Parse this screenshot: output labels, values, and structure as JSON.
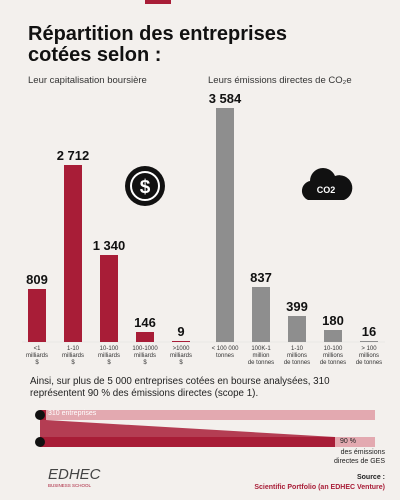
{
  "title": "Répartition des entreprises cotées selon :",
  "chart_data": [
    {
      "type": "bar",
      "subtitle": "Leur capitalisation boursière",
      "categories": [
        "<1\nmilliards\n$",
        "1-10\nmilliards\n$",
        "10-100\nmilliards\n$",
        "100-1000\nmilliards\n$",
        ">1000\nmilliards\n$"
      ],
      "values": [
        809,
        2712,
        1340,
        146,
        9
      ],
      "value_labels": [
        "809",
        "2 712",
        "1 340",
        "146",
        "9"
      ],
      "color": "#a81d37"
    },
    {
      "type": "bar",
      "subtitle": "Leurs émissions directes de CO₂e",
      "categories": [
        "< 100 000\ntonnes",
        "100K-1\nmillion\nde tonnes",
        "1-10\nmillions\nde tonnes",
        "10-100\nmillions\nde tonnes",
        "> 100\nmillions\nde tonnes"
      ],
      "values": [
        3584,
        837,
        399,
        180,
        16
      ],
      "value_labels": [
        "3 584",
        "837",
        "399",
        "180",
        "16"
      ],
      "color": "#8e8e8e"
    }
  ],
  "summary": "Ainsi, sur plus de 5 000 entreprises cotées en bourse analysées, 310 représentent 90 % des émissions directes (scope 1).",
  "companies_label": "310 entreprises",
  "share_label": "90 %",
  "share_caption": "des émissions\ndirectes de GES",
  "icon_label": "CO2",
  "logo": {
    "name": "EDHEC",
    "sub": "BUSINESS SCHOOL"
  },
  "source": {
    "label": "Source :",
    "text": "Scientific Portfolio (an EDHEC Venture)"
  }
}
